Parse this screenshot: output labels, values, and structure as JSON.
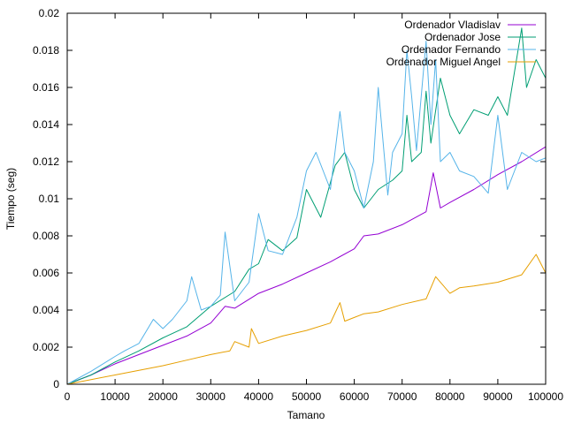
{
  "chart_data": {
    "type": "line",
    "xlabel": "Tamano",
    "ylabel": "Tiempo (seg)",
    "xlim": [
      0,
      100000
    ],
    "ylim": [
      0,
      0.02
    ],
    "xticks": [
      0,
      10000,
      20000,
      30000,
      40000,
      50000,
      60000,
      70000,
      80000,
      90000,
      100000
    ],
    "xtick_labels": [
      "0",
      "10000",
      "20000",
      "30000",
      "40000",
      "50000",
      "60000",
      "70000",
      "80000",
      "90000",
      "100000"
    ],
    "yticks": [
      0,
      0.002,
      0.004,
      0.006,
      0.008,
      0.01,
      0.012,
      0.014,
      0.016,
      0.018,
      0.02
    ],
    "ytick_labels": [
      "0",
      "0.002",
      "0.004",
      "0.006",
      "0.008",
      "0.01",
      "0.012",
      "0.014",
      "0.016",
      "0.018",
      "0.02"
    ],
    "grid": false,
    "legend_position": "top-right",
    "series": [
      {
        "name": "Ordenador Vladislav",
        "color": "#9400d3",
        "x": [
          0,
          5000,
          10000,
          15000,
          20000,
          25000,
          30000,
          33000,
          35000,
          40000,
          45000,
          50000,
          55000,
          60000,
          62000,
          65000,
          70000,
          75000,
          76500,
          78000,
          80000,
          85000,
          90000,
          95000,
          100000
        ],
        "y": [
          0,
          0.0005,
          0.0011,
          0.0016,
          0.0021,
          0.0026,
          0.0033,
          0.0042,
          0.0041,
          0.0049,
          0.0054,
          0.006,
          0.0066,
          0.0073,
          0.008,
          0.0081,
          0.0086,
          0.0093,
          0.0114,
          0.0095,
          0.0098,
          0.0105,
          0.0113,
          0.012,
          0.0128
        ]
      },
      {
        "name": "Ordenador Jose",
        "color": "#009e73",
        "x": [
          0,
          5000,
          10000,
          15000,
          20000,
          25000,
          30000,
          35000,
          38000,
          40000,
          42000,
          45000,
          48000,
          50000,
          53000,
          56000,
          58000,
          60000,
          62000,
          65000,
          68000,
          70000,
          71000,
          72000,
          74000,
          75000,
          76000,
          78000,
          80000,
          82000,
          85000,
          88000,
          90000,
          92000,
          95000,
          96000,
          98000,
          100000
        ],
        "y": [
          0,
          0.0005,
          0.0012,
          0.0018,
          0.0025,
          0.0031,
          0.0042,
          0.005,
          0.0062,
          0.0065,
          0.0078,
          0.0072,
          0.0079,
          0.0105,
          0.009,
          0.0118,
          0.0125,
          0.0105,
          0.0095,
          0.0105,
          0.011,
          0.0115,
          0.0145,
          0.012,
          0.0125,
          0.0158,
          0.013,
          0.0165,
          0.0145,
          0.0135,
          0.0148,
          0.0145,
          0.0155,
          0.0145,
          0.0192,
          0.016,
          0.0175,
          0.0165
        ]
      },
      {
        "name": "Ordenador Fernando",
        "color": "#56b4e9",
        "x": [
          0,
          5000,
          10000,
          12000,
          15000,
          18000,
          20000,
          22000,
          25000,
          26000,
          28000,
          30000,
          32000,
          33000,
          35000,
          38000,
          40000,
          42000,
          45000,
          48000,
          50000,
          52000,
          55000,
          57000,
          58000,
          60000,
          62000,
          64000,
          65000,
          67000,
          68000,
          70000,
          71000,
          72000,
          73000,
          75000,
          76000,
          77000,
          78000,
          80000,
          82000,
          85000,
          88000,
          90000,
          92000,
          95000,
          98000,
          100000
        ],
        "y": [
          0,
          0.0007,
          0.0015,
          0.0018,
          0.0022,
          0.0035,
          0.003,
          0.0035,
          0.0045,
          0.0058,
          0.004,
          0.0042,
          0.0048,
          0.0082,
          0.0045,
          0.0055,
          0.0092,
          0.0072,
          0.007,
          0.009,
          0.0115,
          0.0125,
          0.0105,
          0.0147,
          0.0125,
          0.0115,
          0.0095,
          0.012,
          0.016,
          0.0102,
          0.0125,
          0.0135,
          0.018,
          0.0155,
          0.0126,
          0.0185,
          0.014,
          0.0175,
          0.012,
          0.0125,
          0.0115,
          0.0112,
          0.0103,
          0.0145,
          0.0105,
          0.0125,
          0.012,
          0.0122
        ]
      },
      {
        "name": "Ordenador Miguel Angel",
        "color": "#e69f00",
        "x": [
          0,
          10000,
          20000,
          25000,
          30000,
          34000,
          35000,
          38000,
          38500,
          40000,
          45000,
          50000,
          55000,
          57000,
          58000,
          60000,
          62000,
          65000,
          70000,
          75000,
          77000,
          80000,
          82000,
          85000,
          90000,
          95000,
          98000,
          100000
        ],
        "y": [
          0,
          0.0005,
          0.001,
          0.0013,
          0.0016,
          0.0018,
          0.0023,
          0.002,
          0.003,
          0.0022,
          0.0026,
          0.0029,
          0.0033,
          0.0044,
          0.0034,
          0.0036,
          0.0038,
          0.0039,
          0.0043,
          0.0046,
          0.0058,
          0.0049,
          0.0052,
          0.0053,
          0.0055,
          0.0059,
          0.007,
          0.006
        ]
      }
    ]
  }
}
